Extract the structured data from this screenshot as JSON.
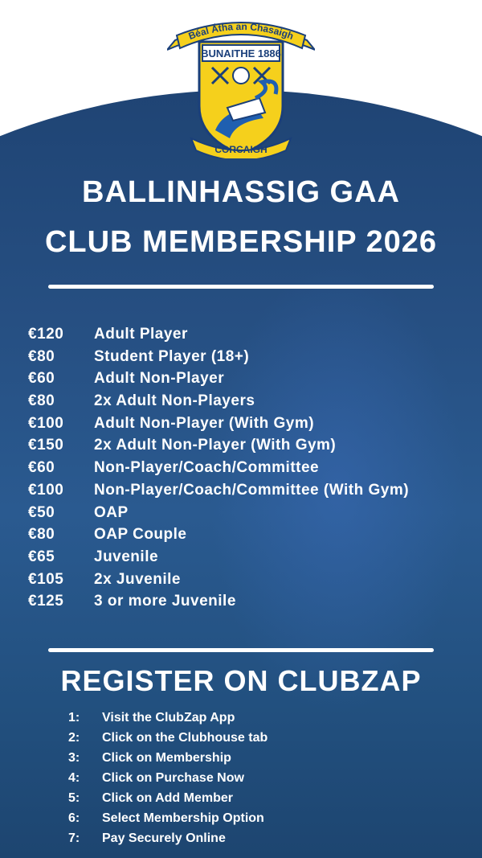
{
  "crest": {
    "banner_top": "Béal Átha an Chasaigh",
    "founded": "BUNAITHE 1886",
    "banner_bottom": "CORCAIGH",
    "colors": {
      "yellow": "#f5d01c",
      "navy": "#1a3f7a",
      "blue": "#1f5fb0"
    }
  },
  "header": {
    "line1": "BALLINHASSIG GAA",
    "line2": "CLUB MEMBERSHIP 2026"
  },
  "memberships": [
    {
      "price": "€120",
      "label": "Adult Player"
    },
    {
      "price": "€80",
      "label": "Student Player (18+)"
    },
    {
      "price": "€60",
      "label": "Adult Non-Player"
    },
    {
      "price": "€80",
      "label": "2x Adult Non-Players"
    },
    {
      "price": "€100",
      "label": "Adult Non-Player (With Gym)"
    },
    {
      "price": "€150",
      "label": "2x Adult Non-Player (With Gym)"
    },
    {
      "price": "€60",
      "label": "Non-Player/Coach/Committee"
    },
    {
      "price": "€100",
      "label": "Non-Player/Coach/Committee (With Gym)"
    },
    {
      "price": "€50",
      "label": "OAP"
    },
    {
      "price": "€80",
      "label": "OAP Couple"
    },
    {
      "price": "€65",
      "label": "Juvenile"
    },
    {
      "price": "€105",
      "label": "2x Juvenile"
    },
    {
      "price": "€125",
      "label": "3 or more Juvenile"
    }
  ],
  "register": {
    "heading": "REGISTER ON CLUBZAP",
    "steps": [
      {
        "num": "1:",
        "text": "Visit the ClubZap App"
      },
      {
        "num": "2:",
        "text": "Click on the Clubhouse tab"
      },
      {
        "num": "3:",
        "text": "Click on Membership"
      },
      {
        "num": "4:",
        "text": "Click on Purchase Now"
      },
      {
        "num": "5:",
        "text": "Click on Add Member"
      },
      {
        "num": "6:",
        "text": "Select Membership Option"
      },
      {
        "num": "7:",
        "text": "Pay Securely Online"
      }
    ]
  },
  "colors": {
    "background_blue": "#264f82",
    "text": "#ffffff"
  }
}
